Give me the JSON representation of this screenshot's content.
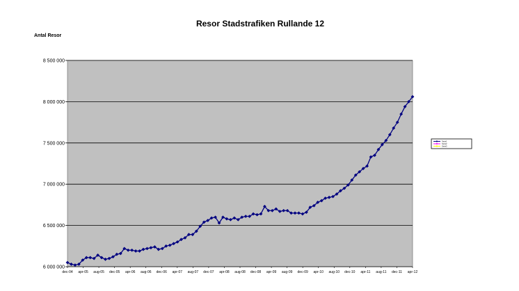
{
  "chart_data": {
    "type": "line",
    "title": "Resor Stadstrafiken Rullande 12",
    "ylabel": "Antal Resor",
    "xlabel": "",
    "ylim": [
      6000000,
      8500000
    ],
    "yticks": [
      6000000,
      6500000,
      7000000,
      7500000,
      8000000,
      8500000
    ],
    "ytick_labels": [
      "6 000 000",
      "6 500 000",
      "7 000 000",
      "7 500 000",
      "8 000 000",
      "8 500 000"
    ],
    "xtick_labels": [
      "dec-04",
      "apr-05",
      "aug-05",
      "dec-05",
      "apr-06",
      "aug-06",
      "dec-06",
      "apr-07",
      "aug-07",
      "dec-07",
      "apr-08",
      "aug-08",
      "dec-08",
      "apr-09",
      "aug-09",
      "dec-09",
      "apr-10",
      "aug-10",
      "dec-10",
      "apr-11",
      "aug-11",
      "dec-11",
      "apr-12"
    ],
    "grid": "horizontal",
    "plot_background": "#c0c0c0",
    "legend_position": "right",
    "series": [
      {
        "name": "Serie1",
        "color": "#000080",
        "marker": "diamond",
        "values": [
          6050000,
          6030000,
          6020000,
          6030000,
          6080000,
          6110000,
          6110000,
          6100000,
          6140000,
          6110000,
          6090000,
          6100000,
          6120000,
          6150000,
          6160000,
          6220000,
          6200000,
          6200000,
          6190000,
          6190000,
          6210000,
          6220000,
          6230000,
          6240000,
          6210000,
          6220000,
          6250000,
          6260000,
          6280000,
          6300000,
          6330000,
          6350000,
          6390000,
          6390000,
          6430000,
          6490000,
          6540000,
          6560000,
          6590000,
          6600000,
          6530000,
          6600000,
          6580000,
          6570000,
          6590000,
          6570000,
          6600000,
          6610000,
          6610000,
          6640000,
          6630000,
          6640000,
          6730000,
          6680000,
          6680000,
          6700000,
          6670000,
          6680000,
          6680000,
          6650000,
          6650000,
          6650000,
          6640000,
          6660000,
          6720000,
          6740000,
          6780000,
          6800000,
          6830000,
          6840000,
          6850000,
          6880000,
          6920000,
          6950000,
          6990000,
          7050000,
          7110000,
          7150000,
          7190000,
          7220000,
          7330000,
          7350000,
          7420000,
          7480000,
          7530000,
          7600000,
          7680000,
          7750000,
          7850000,
          7940000,
          8000000,
          8060000
        ]
      },
      {
        "name": "Serie2",
        "color": "#ff00ff",
        "values": []
      },
      {
        "name": "Serie3",
        "color": "#ffff00",
        "values": []
      }
    ]
  }
}
